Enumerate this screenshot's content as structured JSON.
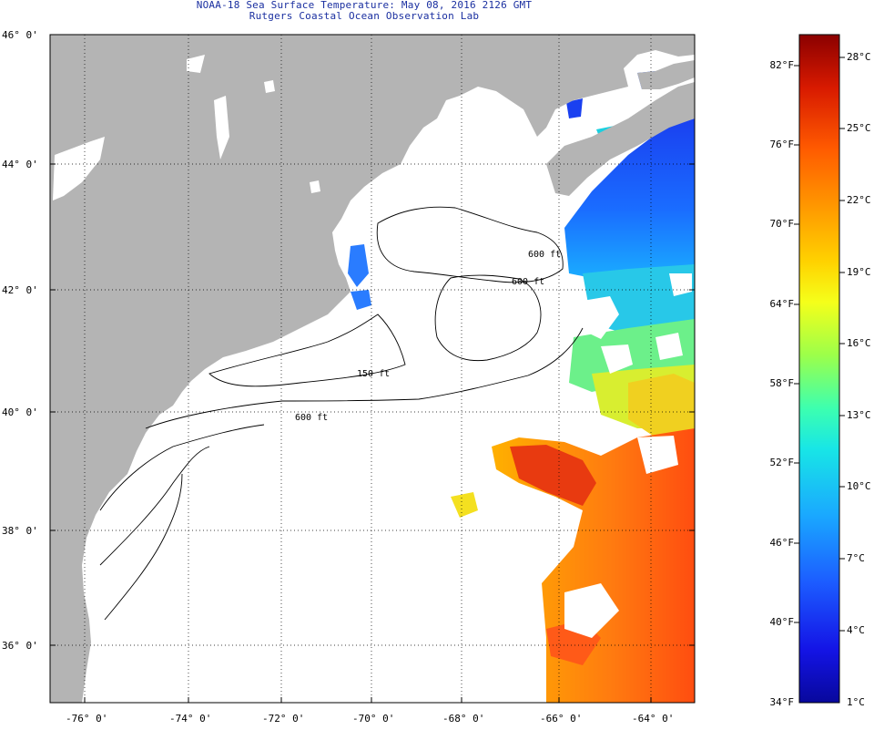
{
  "title": {
    "line1": "NOAA-18 Sea Surface Temperature:  May 08, 2016 2126 GMT",
    "line2": "Rutgers Coastal Ocean Observation Lab"
  },
  "axes": {
    "lat_labels": [
      "46° 0'",
      "44° 0'",
      "42° 0'",
      "40° 0'",
      "38° 0'",
      "36° 0'"
    ],
    "lon_labels": [
      "-76° 0'",
      "-74° 0'",
      "-72° 0'",
      "-70° 0'",
      "-68° 0'",
      "-66° 0'",
      "-64° 0'"
    ],
    "lat_range": [
      35,
      46
    ],
    "lon_range": [
      -77,
      -63
    ],
    "grid": "dotted"
  },
  "contours": [
    "600 ft",
    "600 ft",
    "150 ft",
    "600 ft"
  ],
  "colorbar": {
    "fahrenheit": [
      "82°F",
      "76°F",
      "70°F",
      "64°F",
      "58°F",
      "52°F",
      "46°F",
      "40°F",
      "34°F"
    ],
    "celsius": [
      "28°C",
      "25°C",
      "22°C",
      "19°C",
      "16°C",
      "13°C",
      "10°C",
      "7°C",
      "4°C",
      "1°C"
    ],
    "min_c": 1,
    "max_c": 29,
    "gradient": [
      "#8b0000",
      "#d81a00",
      "#ff5a00",
      "#ff9a00",
      "#ffd200",
      "#f5ff1a",
      "#9cff4a",
      "#3cffb0",
      "#18e6e6",
      "#1aa8ff",
      "#1c5cff",
      "#1414e6",
      "#08089c"
    ]
  },
  "colors": {
    "land": "#b4b4b4",
    "ocean_bg": "#ffffff",
    "title": "#1a2fa0"
  }
}
